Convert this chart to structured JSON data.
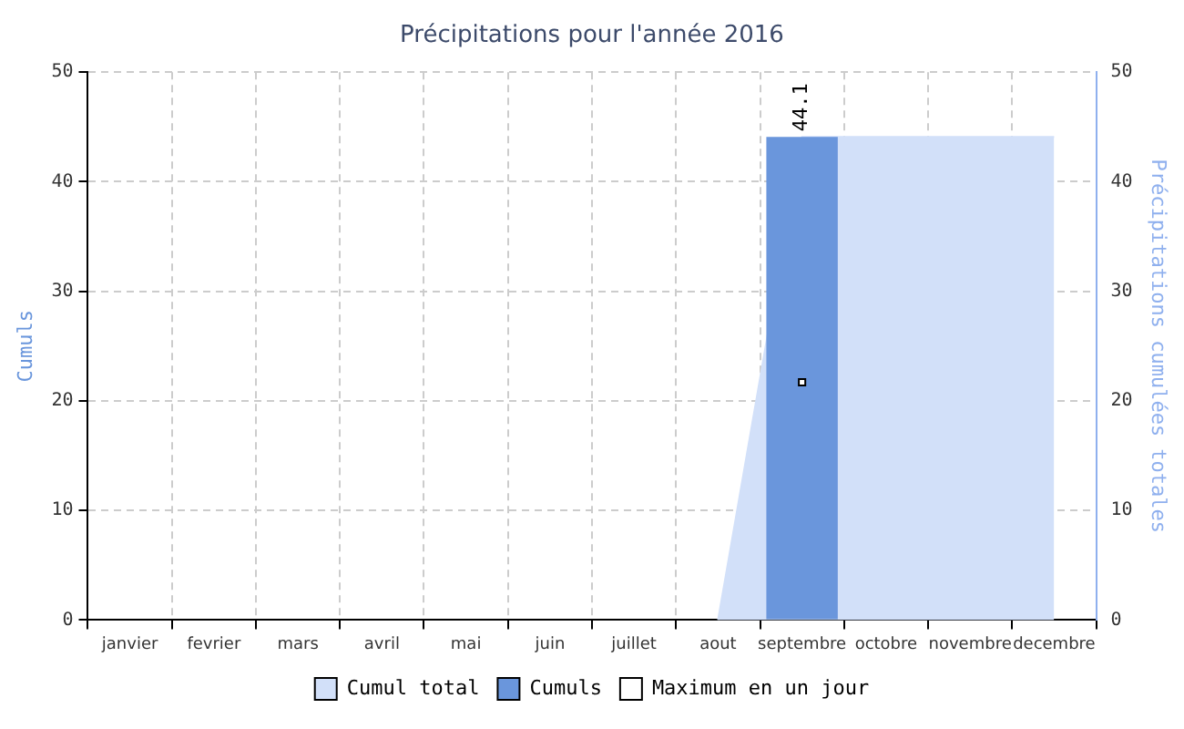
{
  "chart_data": {
    "type": "bar",
    "title": "Précipitations pour l'année 2016",
    "ylabel": "Cumuls",
    "y2label": "Précipitations cumulées totales",
    "categories": [
      "janvier",
      "fevrier",
      "mars",
      "avril",
      "mai",
      "juin",
      "juillet",
      "aout",
      "septembre",
      "octobre",
      "novembre",
      "decembre"
    ],
    "series": [
      {
        "name": "Cumul total",
        "type": "area",
        "axis": "y2",
        "color": "#d2e0f9",
        "values": [
          null,
          null,
          null,
          null,
          null,
          null,
          null,
          0,
          44.1,
          44.1,
          44.1,
          44.1
        ]
      },
      {
        "name": "Cumuls",
        "type": "bar",
        "color": "#6a96dc",
        "values": [
          0,
          0,
          0,
          0,
          0,
          0,
          0,
          0,
          44.1,
          0,
          0,
          0
        ],
        "value_labels": [
          null,
          null,
          null,
          null,
          null,
          null,
          null,
          null,
          "44.1",
          null,
          null,
          null
        ]
      },
      {
        "name": "Maximum en un jour",
        "type": "line",
        "color": "#000000",
        "marker": "square",
        "values": [
          null,
          null,
          null,
          null,
          null,
          null,
          null,
          null,
          21.7,
          null,
          null,
          null
        ]
      }
    ],
    "ylim": [
      0,
      50
    ],
    "yticks": [
      0,
      10,
      20,
      30,
      40,
      50
    ],
    "y2lim": [
      0,
      50
    ],
    "y2ticks": [
      0,
      10,
      20,
      30,
      40,
      50
    ],
    "grid": true,
    "legend": "bottom"
  }
}
